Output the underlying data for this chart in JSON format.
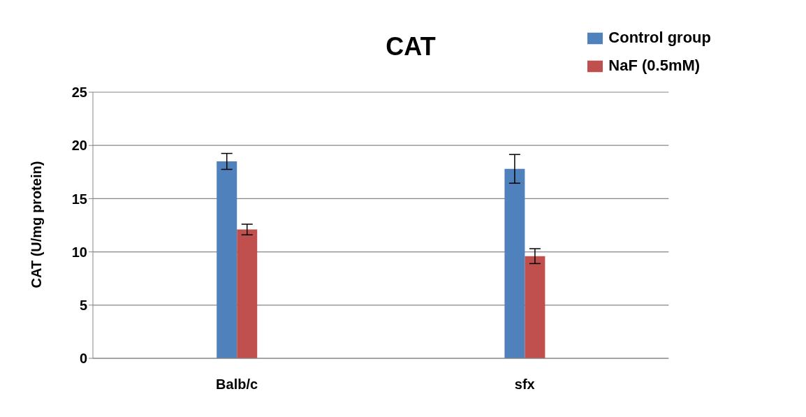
{
  "chart_data": {
    "type": "bar",
    "title": "CAT",
    "ylabel": "CAT (U/mg protein)",
    "categories": [
      "Balb/c",
      "sfx"
    ],
    "series": [
      {
        "name": "Control group",
        "color": "#4f81bd",
        "values": [
          18.5,
          17.8
        ],
        "errors": [
          0.75,
          1.35
        ]
      },
      {
        "name": "NaF (0.5mM)",
        "color": "#c0504d",
        "values": [
          12.1,
          9.6
        ],
        "errors": [
          0.5,
          0.7
        ]
      }
    ],
    "ylim": [
      0,
      25
    ],
    "yticks": [
      0,
      5,
      10,
      15,
      20,
      25
    ],
    "grid": "y",
    "legend": "top right"
  }
}
